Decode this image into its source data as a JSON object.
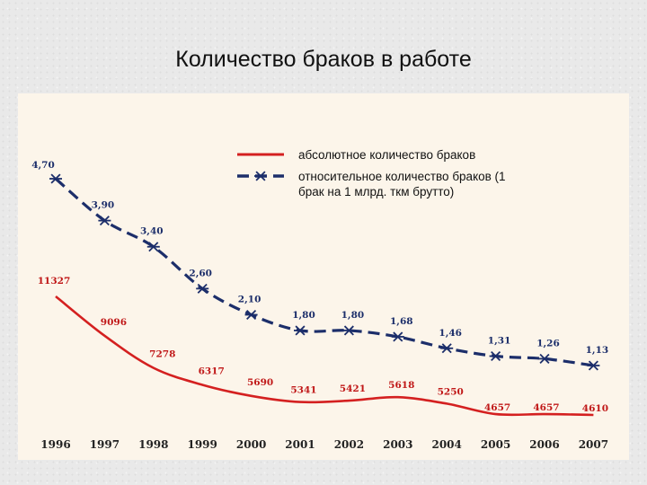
{
  "slide": {
    "title": "Количество браков в работе"
  },
  "chart_data": {
    "type": "line",
    "title": "",
    "xlabel": "",
    "ylabel": "",
    "categories": [
      "1996",
      "1997",
      "1998",
      "1999",
      "2000",
      "2001",
      "2002",
      "2003",
      "2004",
      "2005",
      "2006",
      "2007"
    ],
    "series": [
      {
        "name": "абсолютное количество браков",
        "color": "#d42020",
        "style": "solid",
        "values": [
          11327,
          9096,
          7278,
          6317,
          5690,
          5341,
          5421,
          5618,
          5250,
          4657,
          4657,
          4610
        ],
        "labels": [
          "11327",
          "9096",
          "7278",
          "6317",
          "5690",
          "5341",
          "5421",
          "5618",
          "5250",
          "4657",
          "4657",
          "4610"
        ]
      },
      {
        "name": "относительное количество браков (1 брак на 1 млрд. ткм брутто)",
        "name_lines": [
          "относительное количество браков (1",
          "брак на 1 млрд. ткм брутто)"
        ],
        "color": "#1c2e6a",
        "style": "dashed",
        "marker": "asterisk",
        "values": [
          4.7,
          3.9,
          3.4,
          2.6,
          2.1,
          1.8,
          1.8,
          1.68,
          1.46,
          1.31,
          1.26,
          1.13
        ],
        "labels": [
          "4,70",
          "3,90",
          "3,40",
          "2,60",
          "2,10",
          "1,80",
          "1,80",
          "1,68",
          "1,46",
          "1,31",
          "1,26",
          "1,13"
        ]
      }
    ],
    "legend_position": "top-right",
    "grid": false
  }
}
